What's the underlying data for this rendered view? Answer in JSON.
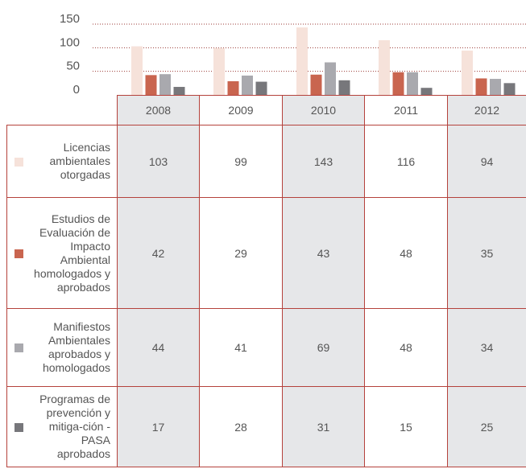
{
  "chart_data": {
    "type": "bar",
    "categories": [
      "2008",
      "2009",
      "2010",
      "2011",
      "2012"
    ],
    "series": [
      {
        "name": "Licencias ambientales otorgadas",
        "color": "#f6e2da",
        "values": [
          103,
          99,
          143,
          116,
          94
        ]
      },
      {
        "name": "Estudios de Evaluación de Impacto Ambiental homologados y aprobados",
        "color": "#c9654f",
        "values": [
          42,
          29,
          43,
          48,
          35
        ]
      },
      {
        "name": "Manifiestos Ambientales aprobados y homologados",
        "color": "#a9a9ae",
        "values": [
          44,
          41,
          69,
          48,
          34
        ]
      },
      {
        "name": "Programas de prevención y mitiga-ción - PASA aprobados",
        "color": "#77777b",
        "values": [
          17,
          28,
          31,
          15,
          25
        ]
      }
    ],
    "ylim": [
      0,
      150
    ],
    "yticks": [
      0,
      50,
      100,
      150
    ],
    "grid": true
  }
}
